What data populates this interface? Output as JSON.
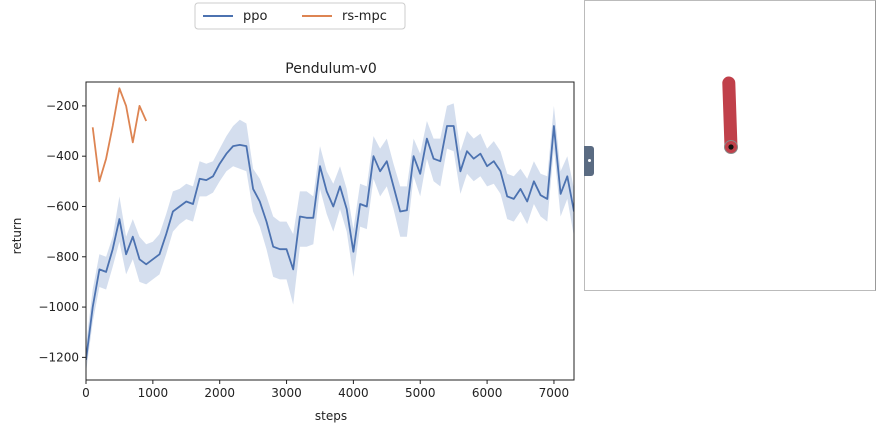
{
  "chart_data": {
    "type": "line",
    "title": "Pendulum-v0",
    "xlabel": "steps",
    "ylabel": "return",
    "xlim": [
      0,
      7300
    ],
    "ylim": [
      -1290,
      -105
    ],
    "xticks": [
      0,
      1000,
      2000,
      3000,
      4000,
      5000,
      6000,
      7000
    ],
    "yticks": [
      -1200,
      -1000,
      -800,
      -600,
      -400,
      -200
    ],
    "xtick_labels": [
      "0",
      "1000",
      "2000",
      "3000",
      "4000",
      "5000",
      "6000",
      "7000"
    ],
    "ytick_labels": [
      "−1200",
      "−1000",
      "−800",
      "−600",
      "−400",
      "−200"
    ],
    "grid": false,
    "legend_position": "top-center, outside",
    "series": [
      {
        "name": "ppo",
        "color": "#4c72b0",
        "band_color": "#c9d6ea",
        "x": [
          0,
          100,
          200,
          300,
          400,
          500,
          600,
          700,
          800,
          900,
          1000,
          1100,
          1200,
          1300,
          1400,
          1500,
          1600,
          1700,
          1800,
          1900,
          2000,
          2100,
          2200,
          2300,
          2400,
          2500,
          2600,
          2700,
          2800,
          2900,
          3000,
          3100,
          3200,
          3300,
          3400,
          3500,
          3600,
          3700,
          3800,
          3900,
          4000,
          4100,
          4200,
          4300,
          4400,
          4500,
          4600,
          4700,
          4800,
          4900,
          5000,
          5100,
          5200,
          5300,
          5400,
          5500,
          5600,
          5700,
          5800,
          5900,
          6000,
          6100,
          6200,
          6300,
          6400,
          6500,
          6600,
          6700,
          6800,
          6900,
          7000,
          7100,
          7200,
          7300
        ],
        "y": [
          -1210,
          -1000,
          -850,
          -860,
          -770,
          -650,
          -790,
          -720,
          -810,
          -830,
          -810,
          -790,
          -710,
          -620,
          -600,
          -580,
          -590,
          -490,
          -495,
          -480,
          -430,
          -390,
          -360,
          -355,
          -360,
          -530,
          -580,
          -660,
          -760,
          -770,
          -770,
          -850,
          -640,
          -645,
          -645,
          -440,
          -540,
          -600,
          -520,
          -610,
          -780,
          -590,
          -600,
          -400,
          -460,
          -420,
          -520,
          -620,
          -615,
          -400,
          -470,
          -330,
          -410,
          -420,
          -280,
          -280,
          -460,
          -380,
          -410,
          -390,
          -440,
          -420,
          -460,
          -560,
          -570,
          -530,
          -580,
          -500,
          -555,
          -570,
          -280,
          -550,
          -480,
          -620
        ],
        "upper": [
          -1150,
          -930,
          -790,
          -800,
          -720,
          -560,
          -720,
          -650,
          -720,
          -750,
          -740,
          -710,
          -630,
          -540,
          -530,
          -510,
          -520,
          -420,
          -430,
          -420,
          -370,
          -320,
          -280,
          -255,
          -270,
          -450,
          -490,
          -560,
          -640,
          -660,
          -660,
          -710,
          -540,
          -540,
          -560,
          -360,
          -460,
          -510,
          -440,
          -530,
          -690,
          -510,
          -520,
          -320,
          -370,
          -330,
          -430,
          -520,
          -520,
          -330,
          -390,
          -260,
          -330,
          -330,
          -200,
          -190,
          -380,
          -300,
          -330,
          -310,
          -370,
          -340,
          -380,
          -470,
          -480,
          -450,
          -490,
          -420,
          -470,
          -480,
          -200,
          -460,
          -400,
          -530
        ],
        "lower": [
          -1260,
          -1060,
          -920,
          -930,
          -840,
          -740,
          -870,
          -810,
          -900,
          -910,
          -890,
          -870,
          -790,
          -700,
          -670,
          -650,
          -660,
          -560,
          -560,
          -545,
          -500,
          -460,
          -440,
          -450,
          -460,
          -620,
          -680,
          -770,
          -880,
          -890,
          -890,
          -990,
          -760,
          -760,
          -750,
          -530,
          -630,
          -700,
          -610,
          -700,
          -880,
          -680,
          -690,
          -490,
          -560,
          -520,
          -610,
          -720,
          -720,
          -480,
          -560,
          -410,
          -500,
          -520,
          -370,
          -380,
          -550,
          -470,
          -500,
          -480,
          -520,
          -510,
          -550,
          -650,
          -660,
          -620,
          -670,
          -590,
          -640,
          -660,
          -370,
          -640,
          -570,
          -720
        ]
      },
      {
        "name": "rs-mpc",
        "color": "#dd8452",
        "x": [
          100,
          200,
          300,
          400,
          500,
          600,
          700,
          800,
          900
        ],
        "y": [
          -285,
          -500,
          -410,
          -280,
          -130,
          -200,
          -345,
          -200,
          -260
        ]
      }
    ]
  },
  "render_panel": {
    "pole_color": "#c0404a",
    "pivot_color": "#111111",
    "angle_deg": -2
  }
}
